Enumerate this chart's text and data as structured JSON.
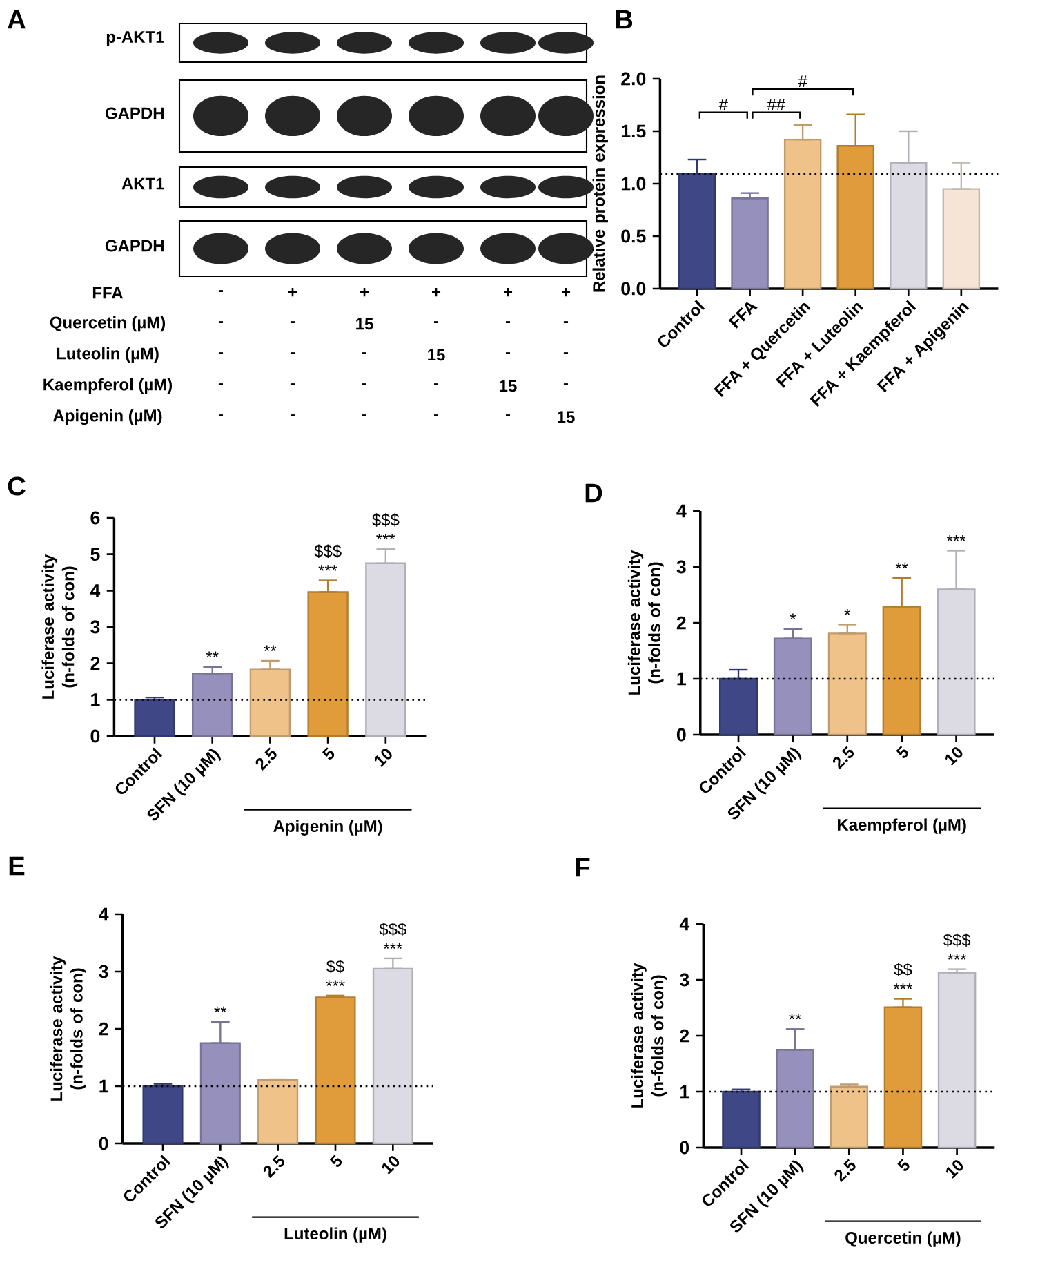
{
  "chart_data": [
    {
      "type": "other",
      "title": "A",
      "annotations": [
        "p-AKT1",
        "GAPDH",
        "AKT1",
        "GAPDH",
        "FFA",
        "-",
        "+",
        "+",
        "+",
        "+",
        "+",
        "Quercetin (µM)",
        "-",
        "-",
        "15",
        "-",
        "-",
        "-",
        "Luteolin (µM)",
        "-",
        "-",
        "-",
        "15",
        "-",
        "-",
        "Kaempferol (µM)",
        "-",
        "-",
        "-",
        "-",
        "15",
        "-",
        "Apigenin (µM)",
        "-",
        "-",
        "-",
        "-",
        "-",
        "15"
      ]
    },
    {
      "type": "bar",
      "title": "B",
      "ylabel": "Relative protein expression",
      "categories": [
        "Control",
        "FFA",
        "FFA + Quercetin",
        "FFA + Luteolin",
        "FFA + Kaempferol",
        "FFA + Apigenin"
      ],
      "values": [
        1.09,
        0.86,
        1.42,
        1.36,
        1.2,
        0.95
      ],
      "errors": [
        [
          1.09,
          1.23
        ],
        [
          0.86,
          0.91
        ],
        [
          1.42,
          1.56
        ],
        [
          1.36,
          1.66
        ],
        [
          1.2,
          1.5
        ],
        [
          0.95,
          1.2
        ]
      ],
      "colors": [
        "#3f4787",
        "#9690bd",
        "#efc28a",
        "#e09c3a",
        "#dcdae3",
        "#f6e5d6"
      ],
      "ylim": [
        0,
        2
      ],
      "yticks": [
        {
          "value": 0,
          "label": "0.0"
        },
        0.5,
        {
          "value": 1,
          "label": "1.0"
        },
        1.5,
        {
          "value": 2,
          "label": "2.0"
        }
      ],
      "ref_lines": [
        {
          "axis": "y",
          "value": 1.09,
          "line_style": "dotted"
        }
      ],
      "annotations": [
        "#",
        "##",
        "#"
      ]
    },
    {
      "type": "bar",
      "title": "C",
      "ylabel": "Luciferase activity (n-folds of con)",
      "xlabel": "Apigenin (µM)",
      "categories": [
        "Control",
        "SFN (10 µM)",
        "2.5",
        "5",
        "10"
      ],
      "values": [
        1.0,
        1.72,
        1.83,
        3.96,
        4.75
      ],
      "errors": [
        [
          1.0,
          1.06
        ],
        [
          1.72,
          1.9
        ],
        [
          1.83,
          2.07
        ],
        [
          3.96,
          4.28
        ],
        [
          4.75,
          5.14
        ]
      ],
      "colors": [
        "#3f4787",
        "#9690bd",
        "#efc28a",
        "#e09c3a",
        "#dcdae3"
      ],
      "ylim": [
        0,
        6
      ],
      "yticks": [
        0,
        1,
        2,
        3,
        4,
        5,
        6
      ],
      "ref_lines": [
        {
          "axis": "y",
          "value": 1,
          "line_style": "dotted"
        }
      ],
      "annotations": [
        {
          "text": "**",
          "x": "SFN (10 µM)",
          "y": 1.9
        },
        {
          "text": "**",
          "x": "2.5",
          "y": 2.07
        },
        {
          "text": "***",
          "x": "5",
          "y": 4.28
        },
        {
          "text": "$$$",
          "x": "5",
          "y": 4.28
        },
        {
          "text": "***",
          "x": "10",
          "y": 5.14
        },
        {
          "text": "$$$",
          "x": "10",
          "y": 5.14
        }
      ]
    },
    {
      "type": "bar",
      "title": "D",
      "ylabel": "Luciferase activity (n-folds of con)",
      "xlabel": "Kaempferol (µM)",
      "categories": [
        "Control",
        "SFN (10 µM)",
        "2.5",
        "5",
        "10"
      ],
      "values": [
        1.0,
        1.72,
        1.81,
        2.29,
        2.6
      ],
      "errors": [
        [
          1.0,
          1.16
        ],
        [
          1.72,
          1.89
        ],
        [
          1.81,
          1.97
        ],
        [
          2.29,
          2.8
        ],
        [
          2.6,
          3.29
        ]
      ],
      "colors": [
        "#3f4787",
        "#9690bd",
        "#efc28a",
        "#e09c3a",
        "#dcdae3"
      ],
      "ylim": [
        0,
        4
      ],
      "yticks": [
        0,
        1,
        2,
        3,
        4
      ],
      "ref_lines": [
        {
          "axis": "y",
          "value": 1,
          "line_style": "dotted"
        }
      ],
      "annotations": [
        {
          "text": "*",
          "x": "SFN (10 µM)",
          "y": 1.89
        },
        {
          "text": "*",
          "x": "2.5",
          "y": 1.97
        },
        {
          "text": "**",
          "x": "5",
          "y": 2.8
        },
        {
          "text": "***",
          "x": "10",
          "y": 3.29
        }
      ]
    },
    {
      "type": "bar",
      "title": "E",
      "ylabel": "Luciferase activity (n-folds of con)",
      "xlabel": "Luteolin (µM)",
      "categories": [
        "Control",
        "SFN (10 µM)",
        "2.5",
        "5",
        "10"
      ],
      "values": [
        1.0,
        1.75,
        1.11,
        2.55,
        3.05
      ],
      "errors": [
        [
          1.0,
          1.04
        ],
        [
          1.75,
          2.12
        ],
        [
          1.11,
          1.12
        ],
        [
          2.55,
          2.58
        ],
        [
          3.05,
          3.23
        ]
      ],
      "colors": [
        "#3f4787",
        "#9690bd",
        "#efc28a",
        "#e09c3a",
        "#dcdae3"
      ],
      "ylim": [
        0,
        4
      ],
      "yticks": [
        0,
        1,
        2,
        3,
        4
      ],
      "ref_lines": [
        {
          "axis": "y",
          "value": 1,
          "line_style": "dotted"
        }
      ],
      "annotations": [
        {
          "text": "**",
          "x": "SFN (10 µM)",
          "y": 2.12
        },
        {
          "text": "***",
          "x": "5",
          "y": 2.58
        },
        {
          "text": "$$",
          "x": "5",
          "y": 2.58
        },
        {
          "text": "***",
          "x": "10",
          "y": 3.23
        },
        {
          "text": "$$$",
          "x": "10",
          "y": 3.23
        }
      ]
    },
    {
      "type": "bar",
      "title": "F",
      "ylabel": "Luciferase activity (n-folds of con)",
      "xlabel": "Quercetin (µM)",
      "categories": [
        "Control",
        "SFN (10 µM)",
        "2.5",
        "5",
        "10"
      ],
      "values": [
        1.0,
        1.75,
        1.09,
        2.51,
        3.13
      ],
      "errors": [
        [
          1.0,
          1.04
        ],
        [
          1.75,
          2.12
        ],
        [
          1.09,
          1.13
        ],
        [
          2.51,
          2.66
        ],
        [
          3.13,
          3.19
        ]
      ],
      "colors": [
        "#3f4787",
        "#9690bd",
        "#efc28a",
        "#e09c3a",
        "#dcdae3"
      ],
      "ylim": [
        0,
        4
      ],
      "yticks": [
        0,
        1,
        2,
        3,
        4
      ],
      "ref_lines": [
        {
          "axis": "y",
          "value": 1,
          "line_style": "dotted"
        }
      ],
      "annotations": [
        {
          "text": "**",
          "x": "SFN (10 µM)",
          "y": 2.12
        },
        {
          "text": "***",
          "x": "5",
          "y": 2.66
        },
        {
          "text": "$$",
          "x": "5",
          "y": 2.66
        },
        {
          "text": "***",
          "x": "10",
          "y": 3.19
        },
        {
          "text": "$$$",
          "x": "10",
          "y": 3.19
        }
      ]
    }
  ]
}
